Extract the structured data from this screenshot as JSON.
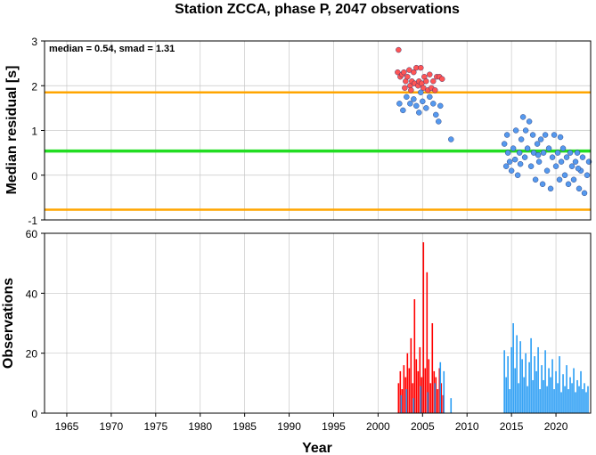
{
  "chart_data": [
    {
      "type": "scatter",
      "panel": "top",
      "title": "Station ZCCA, phase P, 2047 observations",
      "annotation": "median = 0.54, smad = 1.31",
      "xlabel": "",
      "ylabel": "Median residual [s]",
      "xlim": [
        1962.5,
        2023.9
      ],
      "ylim": [
        -1,
        3
      ],
      "y_ticks": [
        -1,
        0,
        1,
        2,
        3
      ],
      "grid": true,
      "reference_lines": [
        {
          "name": "median",
          "y": 0.54,
          "color": "#22dd22"
        },
        {
          "name": "upper bound",
          "y": 1.85,
          "color": "#ffa500"
        },
        {
          "name": "lower bound",
          "y": -0.77,
          "color": "#ffa500"
        }
      ],
      "series": [
        {
          "color": "#ff5555",
          "points": [
            [
              2002.3,
              2.8
            ],
            [
              2002.2,
              2.3
            ],
            [
              2002.5,
              2.2
            ],
            [
              2002.7,
              2.25
            ],
            [
              2002.9,
              2.3
            ],
            [
              2003.1,
              2.1
            ],
            [
              2003.3,
              2.2
            ],
            [
              2003.5,
              2.35
            ],
            [
              2003.6,
              2.0
            ],
            [
              2003.8,
              2.1
            ],
            [
              2004.0,
              2.3
            ],
            [
              2004.1,
              2.05
            ],
            [
              2004.3,
              2.4
            ],
            [
              2004.5,
              2.0
            ],
            [
              2004.6,
              2.1
            ],
            [
              2004.8,
              2.4
            ],
            [
              2004.9,
              2.05
            ],
            [
              2005.1,
              1.95
            ],
            [
              2005.2,
              2.2
            ],
            [
              2005.4,
              2.1
            ],
            [
              2005.6,
              1.9
            ],
            [
              2005.8,
              2.25
            ],
            [
              2006.0,
              1.95
            ],
            [
              2006.2,
              2.1
            ],
            [
              2006.4,
              1.9
            ],
            [
              2006.6,
              2.2
            ],
            [
              2006.9,
              2.2
            ],
            [
              2007.2,
              2.15
            ],
            [
              2003.0,
              1.95
            ],
            [
              2003.7,
              1.9
            ]
          ]
        },
        {
          "color": "#5599ee",
          "points": [
            [
              2002.4,
              1.6
            ],
            [
              2002.8,
              1.45
            ],
            [
              2003.2,
              1.75
            ],
            [
              2003.6,
              1.6
            ],
            [
              2004.0,
              1.7
            ],
            [
              2004.3,
              1.55
            ],
            [
              2004.6,
              1.4
            ],
            [
              2005.0,
              1.65
            ],
            [
              2005.4,
              1.5
            ],
            [
              2005.8,
              1.75
            ],
            [
              2006.2,
              1.6
            ],
            [
              2006.5,
              1.35
            ],
            [
              2006.8,
              1.2
            ],
            [
              2007.0,
              1.55
            ],
            [
              2004.8,
              1.85
            ],
            [
              2008.2,
              0.8
            ],
            [
              2014.2,
              0.7
            ],
            [
              2014.4,
              0.2
            ],
            [
              2014.6,
              0.5
            ],
            [
              2014.8,
              0.3
            ],
            [
              2015.0,
              0.1
            ],
            [
              2015.2,
              0.6
            ],
            [
              2015.4,
              0.35
            ],
            [
              2015.5,
              1.0
            ],
            [
              2015.7,
              0.0
            ],
            [
              2015.9,
              0.5
            ],
            [
              2016.1,
              0.8
            ],
            [
              2016.3,
              1.3
            ],
            [
              2016.5,
              0.4
            ],
            [
              2016.6,
              1.0
            ],
            [
              2016.8,
              0.6
            ],
            [
              2017.0,
              1.2
            ],
            [
              2017.2,
              0.2
            ],
            [
              2017.4,
              0.9
            ],
            [
              2017.5,
              0.5
            ],
            [
              2017.7,
              -0.1
            ],
            [
              2017.9,
              0.7
            ],
            [
              2018.1,
              0.3
            ],
            [
              2018.3,
              0.8
            ],
            [
              2018.5,
              -0.2
            ],
            [
              2018.6,
              0.5
            ],
            [
              2018.8,
              0.9
            ],
            [
              2019.0,
              0.1
            ],
            [
              2019.2,
              0.6
            ],
            [
              2019.4,
              -0.3
            ],
            [
              2019.6,
              0.4
            ],
            [
              2019.8,
              0.9
            ],
            [
              2020.0,
              0.2
            ],
            [
              2020.2,
              0.5
            ],
            [
              2020.4,
              -0.1
            ],
            [
              2020.6,
              0.3
            ],
            [
              2020.8,
              0.6
            ],
            [
              2021.0,
              0.0
            ],
            [
              2021.2,
              0.4
            ],
            [
              2021.4,
              -0.2
            ],
            [
              2021.6,
              0.5
            ],
            [
              2021.8,
              0.2
            ],
            [
              2022.0,
              -0.1
            ],
            [
              2022.2,
              0.3
            ],
            [
              2022.4,
              0.5
            ],
            [
              2022.6,
              -0.3
            ],
            [
              2022.8,
              0.1
            ],
            [
              2023.0,
              0.4
            ],
            [
              2023.2,
              -0.4
            ],
            [
              2023.5,
              0.0
            ],
            [
              2023.7,
              0.3
            ],
            [
              2014.5,
              0.9
            ],
            [
              2016.0,
              0.25
            ],
            [
              2018.0,
              0.45
            ],
            [
              2020.5,
              0.85
            ],
            [
              2022.5,
              0.15
            ]
          ]
        }
      ]
    },
    {
      "type": "bar",
      "panel": "bottom",
      "xlabel": "Year",
      "ylabel": "Observations",
      "xlim": [
        1962.5,
        2023.9
      ],
      "ylim": [
        0,
        60
      ],
      "y_ticks": [
        0,
        20,
        40,
        60
      ],
      "x_ticks": [
        1965,
        1970,
        1975,
        1980,
        1985,
        1990,
        1995,
        2000,
        2005,
        2010,
        2015,
        2020
      ],
      "grid": true,
      "series": [
        {
          "color": "#ff0000",
          "x": [
            2002.3,
            2002.5,
            2002.7,
            2002.9,
            2003.1,
            2003.3,
            2003.5,
            2003.7,
            2003.9,
            2004.1,
            2004.3,
            2004.5,
            2004.7,
            2004.9,
            2005.1,
            2005.3,
            2005.5,
            2005.7,
            2005.9,
            2006.1,
            2006.3,
            2006.5,
            2006.7,
            2006.9,
            2007.1,
            2007.3
          ],
          "values": [
            10,
            14,
            8,
            16,
            12,
            20,
            15,
            25,
            10,
            38,
            18,
            14,
            22,
            12,
            57,
            15,
            47,
            18,
            10,
            30,
            14,
            12,
            8,
            15,
            10,
            6
          ]
        },
        {
          "color": "#2a9df4",
          "x": [
            2002.6,
            2003.2,
            2004.0,
            2004.8,
            2005.6,
            2006.4,
            2007.0,
            2007.4,
            2008.2,
            2014.2,
            2014.4,
            2014.6,
            2014.8,
            2015.0,
            2015.2,
            2015.4,
            2015.6,
            2015.8,
            2016.0,
            2016.2,
            2016.4,
            2016.6,
            2016.8,
            2017.0,
            2017.2,
            2017.4,
            2017.6,
            2017.8,
            2018.0,
            2018.2,
            2018.4,
            2018.6,
            2018.8,
            2019.0,
            2019.2,
            2019.4,
            2019.6,
            2019.8,
            2020.0,
            2020.2,
            2020.4,
            2020.6,
            2020.8,
            2021.0,
            2021.2,
            2021.4,
            2021.6,
            2021.8,
            2022.0,
            2022.2,
            2022.4,
            2022.6,
            2022.8,
            2023.0,
            2023.2,
            2023.4,
            2023.6
          ],
          "values": [
            6,
            8,
            5,
            9,
            7,
            10,
            17,
            14,
            5,
            21,
            12,
            19,
            8,
            22,
            30,
            15,
            26,
            10,
            24,
            18,
            12,
            20,
            9,
            17,
            25,
            11,
            19,
            14,
            22,
            8,
            16,
            11,
            21,
            9,
            15,
            12,
            18,
            8,
            14,
            10,
            19,
            7,
            13,
            9,
            16,
            8,
            12,
            10,
            15,
            7,
            11,
            9,
            14,
            8,
            10,
            7,
            9
          ]
        }
      ]
    }
  ]
}
